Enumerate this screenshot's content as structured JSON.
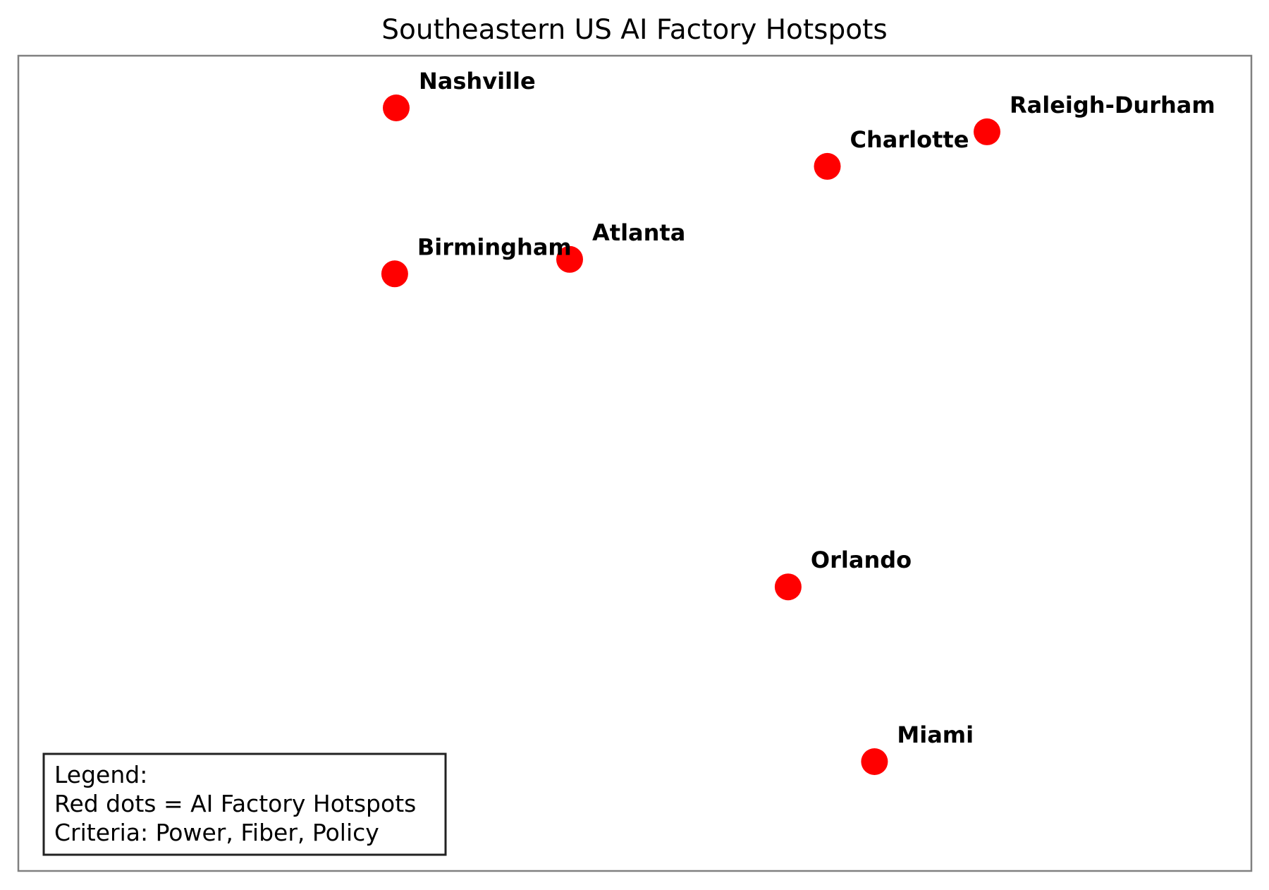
{
  "title": "Southeastern US AI Factory Hotspots",
  "marker_color": "#ff0000",
  "frame_color": "#808080",
  "cities": [
    {
      "name": "Nashville",
      "lon": -86.78,
      "lat": 36.16
    },
    {
      "name": "Raleigh-Durham",
      "lon": -78.64,
      "lat": 35.78
    },
    {
      "name": "Charlotte",
      "lon": -80.84,
      "lat": 35.23
    },
    {
      "name": "Atlanta",
      "lon": -84.39,
      "lat": 33.75
    },
    {
      "name": "Birmingham",
      "lon": -86.8,
      "lat": 33.52
    },
    {
      "name": "Orlando",
      "lon": -81.38,
      "lat": 28.54
    },
    {
      "name": "Miami",
      "lon": -80.19,
      "lat": 25.76
    }
  ],
  "legend": {
    "lines": [
      "Legend:",
      "Red dots = AI Factory Hotspots",
      "Criteria: Power, Fiber, Policy"
    ]
  }
}
